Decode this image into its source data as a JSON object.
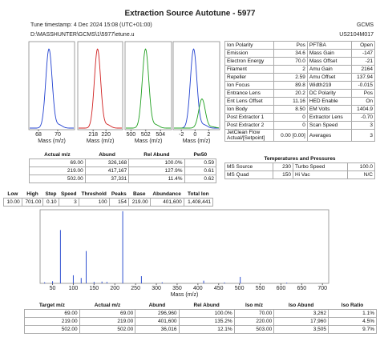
{
  "header": {
    "title": "Extraction Source Autotune - 5977",
    "timestamp": "Tune timestamp: 4 Dec 2024 15:08  (UTC+01:00)",
    "instrument": "GCMS",
    "path": "D:\\MASSHUNTER\\GCMS\\1\\5977\\etune.u",
    "serial": "US2104M017"
  },
  "peak_plots": [
    {
      "xlim": [
        67,
        71.75
      ],
      "xticks": [
        68,
        70
      ],
      "colors": [
        "#2040d0"
      ],
      "x_label": "Mass (m/z)"
    },
    {
      "xlim": [
        215.6,
        222.6
      ],
      "xticks": [
        218,
        220
      ],
      "colors": [
        "#d02020"
      ],
      "x_label": "Mass (m/z)"
    },
    {
      "xlim": [
        499.2,
        505.5
      ],
      "xticks": [
        500,
        502,
        504
      ],
      "colors": [
        "#20a020"
      ],
      "x_label": "Mass (m/z)"
    },
    {
      "xlim": [
        -3.2,
        3.6
      ],
      "xticks": [
        -2,
        0,
        2
      ],
      "colors": [
        "#2040d0",
        "#20a020"
      ],
      "x_label": "Mass (m/z)"
    }
  ],
  "parameters": {
    "rows": [
      [
        "Ion Polarity",
        "Pos",
        "PFTBA",
        "Open"
      ],
      [
        "Emission",
        "34.6",
        "Mass Gain",
        "-147"
      ],
      [
        "Electron Energy",
        "70.0",
        "Mass Offset",
        "-21"
      ],
      [
        "Filament",
        "2",
        "Amu Gain",
        "2164"
      ],
      [
        "Repeller",
        "2.59",
        "Amu Offset",
        "137.94"
      ],
      [
        "Ion Focus",
        "89.8",
        "Width219",
        "-0.015"
      ],
      [
        "Entrance Lens",
        "20.2",
        "DC Polarity",
        "Pos"
      ],
      [
        "Ent Lens Offset",
        "11.16",
        "HED Enable",
        "On"
      ],
      [
        "Ion Body",
        "8.50",
        "EM Volts",
        "1404.9"
      ],
      [
        "Post Extractor 1",
        "0",
        "Extractor Lens",
        "-0.70"
      ],
      [
        "Post Extractor 2",
        "0",
        "Scan Speed",
        "3"
      ],
      [
        "JetClean Flow Actual/[Setpoint]",
        "0.00 [0.00]",
        "Averages",
        "3"
      ]
    ]
  },
  "peaks_table": {
    "columns": [
      "Actual m/z",
      "Abund",
      "Rel Abund",
      "Pw50"
    ],
    "rows": [
      [
        "69.00",
        "326,168",
        "100.0%",
        "0.59"
      ],
      [
        "219.00",
        "417,167",
        "127.9%",
        "0.61"
      ],
      [
        "502.00",
        "37,331",
        "11.4%",
        "0.62"
      ]
    ]
  },
  "temperatures": {
    "title": "Temperatures and Pressures",
    "rows": [
      [
        "MS Source",
        "230",
        "Turbo Speed",
        "100.0"
      ],
      [
        "MS Quad",
        "150",
        "Hi Vac",
        "N/C"
      ]
    ]
  },
  "scan": {
    "columns": [
      "Low",
      "High",
      "Step",
      "Speed",
      "Threshold",
      "Peaks",
      "Base",
      "Abundance",
      "Total Ion"
    ],
    "values": [
      "10.00",
      "701.00",
      "0.10",
      "3",
      "100",
      "154",
      "219.00",
      "401,600",
      "1,408,441"
    ]
  },
  "chart_data": {
    "type": "stem",
    "x_label": "Mass (m/z)",
    "color": "#3050d0",
    "x": [
      31,
      50,
      69,
      100,
      119,
      131,
      150,
      169,
      181,
      219,
      264,
      314,
      414,
      464,
      502,
      614
    ],
    "values": [
      6000,
      12000,
      296960,
      45000,
      30000,
      180000,
      8000,
      10000,
      8000,
      401600,
      40000,
      6000,
      15000,
      5000,
      36016,
      4000
    ],
    "xlim": [
      20,
      715
    ],
    "ylim": [
      0,
      410000
    ],
    "xticks": [
      50,
      100,
      150,
      200,
      250,
      300,
      350,
      400,
      450,
      500,
      550,
      600,
      650,
      700
    ]
  },
  "iso_table": {
    "columns": [
      "Target m/z",
      "Actual m/z",
      "Abund",
      "Rel Abund",
      "Iso m/z",
      "Iso Abund",
      "Iso Ratio"
    ],
    "rows": [
      [
        "69.00",
        "69.00",
        "296,960",
        "100.0%",
        "70.00",
        "3,262",
        "1.1%"
      ],
      [
        "219.00",
        "219.00",
        "401,600",
        "135.2%",
        "220.00",
        "17,960",
        "4.5%"
      ],
      [
        "502.00",
        "502.00",
        "36,016",
        "12.1%",
        "503.00",
        "3,505",
        "9.7%"
      ]
    ]
  }
}
